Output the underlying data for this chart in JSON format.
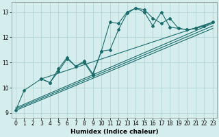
{
  "xlabel": "Humidex (Indice chaleur)",
  "bg_color": "#d5eeed",
  "line_color": "#1a6b6b",
  "grid_color": "#b0d4d4",
  "xlim": [
    -0.5,
    23.5
  ],
  "ylim": [
    8.8,
    13.4
  ],
  "yticks": [
    9,
    10,
    11,
    12,
    13
  ],
  "xticks": [
    0,
    1,
    2,
    3,
    4,
    5,
    6,
    7,
    8,
    9,
    10,
    11,
    12,
    13,
    14,
    15,
    16,
    17,
    18,
    19,
    20,
    21,
    22,
    23
  ],
  "series0_x": [
    0,
    1,
    3,
    4,
    5,
    6,
    7,
    8,
    9,
    10,
    11,
    12,
    13,
    14,
    15,
    16,
    17,
    18,
    19,
    20,
    21,
    22,
    23
  ],
  "series0_y": [
    9.1,
    9.9,
    10.35,
    10.2,
    10.65,
    11.15,
    10.85,
    11.0,
    10.5,
    11.45,
    12.6,
    12.55,
    13.0,
    13.15,
    13.1,
    12.75,
    12.55,
    12.75,
    12.35,
    12.3,
    12.35,
    12.45,
    12.6
  ],
  "series1_x": [
    3,
    4,
    5,
    6,
    7,
    8,
    9,
    10,
    11,
    12,
    13,
    14,
    15,
    16,
    17,
    18,
    19,
    20,
    21,
    22,
    23
  ],
  "series1_y": [
    10.35,
    10.2,
    10.75,
    11.2,
    10.85,
    11.05,
    10.55,
    11.45,
    11.5,
    12.3,
    12.95,
    13.15,
    13.0,
    12.45,
    13.0,
    12.4,
    12.35,
    12.3,
    12.35,
    12.45,
    12.6
  ],
  "trend_lines": [
    {
      "x": [
        0,
        23
      ],
      "y": [
        9.1,
        12.35
      ]
    },
    {
      "x": [
        0,
        23
      ],
      "y": [
        9.15,
        12.45
      ]
    },
    {
      "x": [
        0,
        23
      ],
      "y": [
        9.2,
        12.55
      ]
    },
    {
      "x": [
        3,
        23
      ],
      "y": [
        10.35,
        12.6
      ]
    }
  ]
}
